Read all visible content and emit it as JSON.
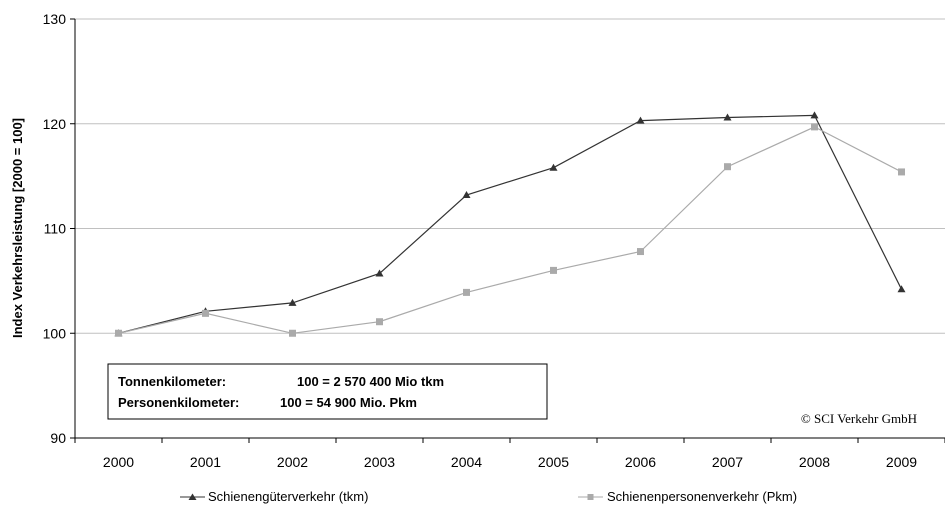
{
  "chart_data": {
    "type": "line",
    "title": "",
    "xlabel": "",
    "ylabel": "Index Verkehrsleistung [2000 = 100]",
    "ylim": [
      90,
      130
    ],
    "yticks": [
      "90",
      "100",
      "110",
      "120",
      "130"
    ],
    "categories": [
      "2000",
      "2001",
      "2002",
      "2003",
      "2004",
      "2005",
      "2006",
      "2007",
      "2008",
      "2009"
    ],
    "grid": "horizontal",
    "legend_position": "bottom",
    "series": [
      {
        "name": "Schienengüterverkehr (tkm)",
        "marker": "triangle",
        "color": "#333333",
        "values": [
          100,
          102.1,
          102.9,
          105.7,
          113.2,
          115.8,
          120.3,
          120.6,
          120.8,
          104.2
        ]
      },
      {
        "name": "Schienenpersonenverkehr (Pkm)",
        "marker": "square",
        "color": "#aaaaaa",
        "values": [
          100,
          101.9,
          100,
          101.1,
          103.9,
          106,
          107.8,
          115.9,
          119.7,
          115.4
        ]
      }
    ],
    "annotation_box": {
      "row1_label": "Tonnenkilometer:",
      "row1_value": "100 = 2 570 400 Mio tkm",
      "row2_label": "Personenkilometer:",
      "row2_value": "100 = 54 900 Mio. Pkm"
    },
    "copyright": "© SCI Verkehr GmbH"
  }
}
